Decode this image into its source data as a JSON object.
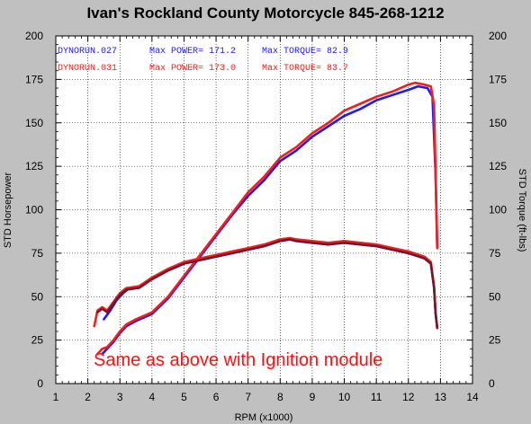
{
  "chart_data": {
    "type": "line",
    "title": "Ivan's Rockland County Motorcycle  845-268-1212",
    "xlabel": "RPM (x1000)",
    "ylabel_left": "STD Horsepower",
    "ylabel_right": "STD Torque (ft-lbs)",
    "xlim": [
      1,
      14
    ],
    "ylim": [
      0,
      200
    ],
    "x_ticks": [
      "1",
      "2",
      "3",
      "4",
      "5",
      "6",
      "7",
      "8",
      "9",
      "10",
      "11",
      "12",
      "13",
      "14"
    ],
    "y_ticks": [
      "0",
      "25",
      "50",
      "75",
      "100",
      "125",
      "150",
      "175",
      "200"
    ],
    "grid": true,
    "legend_position": "top-left",
    "legend": [
      {
        "run": "DYNORUN.027",
        "power": "Max POWER= 171.2",
        "torque": "Max TORQUE= 82.9",
        "color": "#1a1aff"
      },
      {
        "run": "DYNORUN.031",
        "power": "Max POWER= 173.0",
        "torque": "Max TORQUE= 83.7",
        "color": "#ff1a1a"
      }
    ],
    "annotation": {
      "text": "Same as above with Ignition module",
      "color": "#ff1010"
    },
    "series": [
      {
        "run": "DYNORUN.027",
        "quantity": "power",
        "color": "#1a1aff",
        "x": [
          2.45,
          2.6,
          2.8,
          3.0,
          3.2,
          3.5,
          4.0,
          4.5,
          5.0,
          5.5,
          6.0,
          6.5,
          7.0,
          7.5,
          8.0,
          8.5,
          9.0,
          9.5,
          10.0,
          10.5,
          11.0,
          11.5,
          12.0,
          12.3,
          12.6,
          12.75,
          12.85,
          12.9
        ],
        "y": [
          17,
          20,
          24,
          29,
          33,
          36,
          40,
          49,
          61,
          73,
          85,
          97,
          108,
          117,
          128,
          134,
          142,
          148,
          154,
          158,
          163,
          166,
          169,
          171,
          170,
          165,
          120,
          78
        ]
      },
      {
        "run": "DYNORUN.031",
        "quantity": "power",
        "color": "#ff1a1a",
        "x": [
          2.3,
          2.45,
          2.6,
          2.8,
          3.0,
          3.2,
          3.5,
          4.0,
          4.5,
          5.0,
          5.5,
          6.0,
          6.5,
          7.0,
          7.5,
          8.0,
          8.5,
          9.0,
          9.5,
          10.0,
          10.5,
          11.0,
          11.5,
          12.0,
          12.2,
          12.5,
          12.7,
          12.8,
          12.85,
          12.9
        ],
        "y": [
          17,
          20,
          21,
          25,
          30,
          34,
          37,
          41,
          50,
          62,
          74,
          86,
          98,
          110,
          119,
          130,
          136,
          144,
          150,
          157,
          161,
          165,
          168,
          172,
          173,
          172,
          171,
          160,
          120,
          78
        ]
      },
      {
        "run": "DYNORUN.027",
        "quantity": "torque",
        "color": "#1a1aff",
        "x": [
          2.5,
          2.7,
          2.9,
          3.1,
          3.3,
          3.6,
          4.0,
          4.5,
          5.0,
          5.5,
          6.0,
          6.5,
          7.0,
          7.5,
          8.0,
          8.3,
          8.5,
          9.0,
          9.5,
          10.0,
          10.5,
          11.0,
          11.5,
          12.0,
          12.5,
          12.7,
          12.8,
          12.85,
          12.9
        ],
        "y": [
          37,
          42,
          48,
          52,
          55,
          56,
          60,
          65,
          69,
          71,
          73,
          75,
          77,
          79,
          82,
          82.9,
          82,
          81,
          80,
          81,
          80,
          79,
          77,
          75,
          72,
          69,
          55,
          40,
          32
        ]
      },
      {
        "run": "DYNORUN.031",
        "quantity": "torque",
        "color": "#ff1a1a",
        "x": [
          2.2,
          2.3,
          2.45,
          2.6,
          2.8,
          3.0,
          3.2,
          3.6,
          4.0,
          4.5,
          5.0,
          5.5,
          6.0,
          6.5,
          7.0,
          7.5,
          8.0,
          8.3,
          8.5,
          9.0,
          9.5,
          10.0,
          10.5,
          11.0,
          11.5,
          12.0,
          12.5,
          12.7,
          12.8,
          12.85,
          12.9
        ],
        "y": [
          33,
          42,
          44,
          42,
          47,
          52,
          55,
          56,
          61,
          66,
          70,
          72,
          74,
          76,
          78,
          80,
          83,
          83.7,
          83,
          82,
          81,
          82,
          81,
          80,
          78,
          76,
          73,
          70,
          56,
          41,
          32
        ]
      },
      {
        "run": "DYNORUN.027 / DYNORUN.031",
        "quantity": "torque overlay",
        "color": "#6a1a2a",
        "x": [
          2.3,
          2.45,
          2.6,
          2.8,
          3.0,
          3.2,
          3.6,
          4.0,
          4.5,
          5.0,
          5.5,
          6.0,
          6.5,
          7.0,
          7.5,
          8.0,
          8.3,
          8.5,
          9.0,
          9.5,
          10.0,
          10.5,
          11.0,
          11.5,
          12.0,
          12.5,
          12.7,
          12.8,
          12.85,
          12.9
        ],
        "y": [
          41,
          43,
          41,
          46,
          51,
          54,
          55,
          60,
          65,
          69,
          71,
          73,
          75,
          77,
          79,
          82,
          83,
          82,
          81,
          80,
          81,
          80,
          79,
          77,
          75,
          72,
          69,
          55,
          40,
          32
        ]
      }
    ]
  }
}
